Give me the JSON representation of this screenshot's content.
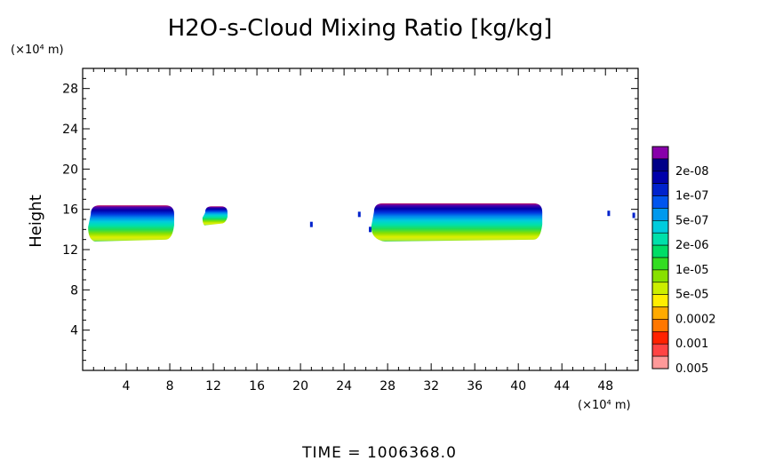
{
  "chart_data": {
    "type": "contour",
    "title": "H2O-s-Cloud Mixing Ratio [kg/kg]",
    "ylabel": "Height",
    "y_unit": "(×10⁴ m)",
    "x_unit": "(×10⁴ m)",
    "xlim": [
      0,
      51
    ],
    "ylim": [
      0,
      30
    ],
    "xticks": [
      4,
      8,
      12,
      16,
      20,
      24,
      28,
      32,
      36,
      40,
      44,
      48
    ],
    "yticks": [
      4,
      8,
      12,
      16,
      20,
      24,
      28
    ],
    "grid": false,
    "legend_position": "right",
    "legend": [
      {
        "label": "0.005",
        "color": "#ff9999"
      },
      {
        "label": "",
        "color": "#ff4444"
      },
      {
        "label": "0.001",
        "color": "#ff2200"
      },
      {
        "label": "",
        "color": "#ff7700"
      },
      {
        "label": "0.0002",
        "color": "#ffaa00"
      },
      {
        "label": "",
        "color": "#ffee00"
      },
      {
        "label": "5e-05",
        "color": "#ccee00"
      },
      {
        "label": "",
        "color": "#88e000"
      },
      {
        "label": "1e-05",
        "color": "#33dd22"
      },
      {
        "label": "",
        "color": "#00dd66"
      },
      {
        "label": "2e-06",
        "color": "#00e0aa"
      },
      {
        "label": "",
        "color": "#00ccdd"
      },
      {
        "label": "5e-07",
        "color": "#0099ee"
      },
      {
        "label": "",
        "color": "#0055ee"
      },
      {
        "label": "1e-07",
        "color": "#0022cc"
      },
      {
        "label": "",
        "color": "#0000aa"
      },
      {
        "label": "2e-08",
        "color": "#000088"
      },
      {
        "label": "",
        "color": "#8800aa"
      }
    ],
    "clouds": [
      {
        "x0": 0.5,
        "x1": 8.4,
        "ybot": 12.8,
        "ytop": 16.4
      },
      {
        "x0": 11.0,
        "x1": 13.3,
        "ybot": 14.4,
        "ytop": 16.3
      },
      {
        "x0": 26.5,
        "x1": 42.2,
        "ybot": 12.8,
        "ytop": 16.6
      }
    ],
    "specks": [
      {
        "x": 21.0,
        "y": 14.5
      },
      {
        "x": 25.4,
        "y": 15.5
      },
      {
        "x": 26.4,
        "y": 14.0
      },
      {
        "x": 48.3,
        "y": 15.6
      },
      {
        "x": 50.6,
        "y": 15.4
      }
    ]
  },
  "footer": {
    "time_text": "TIME = 1006368.0"
  }
}
